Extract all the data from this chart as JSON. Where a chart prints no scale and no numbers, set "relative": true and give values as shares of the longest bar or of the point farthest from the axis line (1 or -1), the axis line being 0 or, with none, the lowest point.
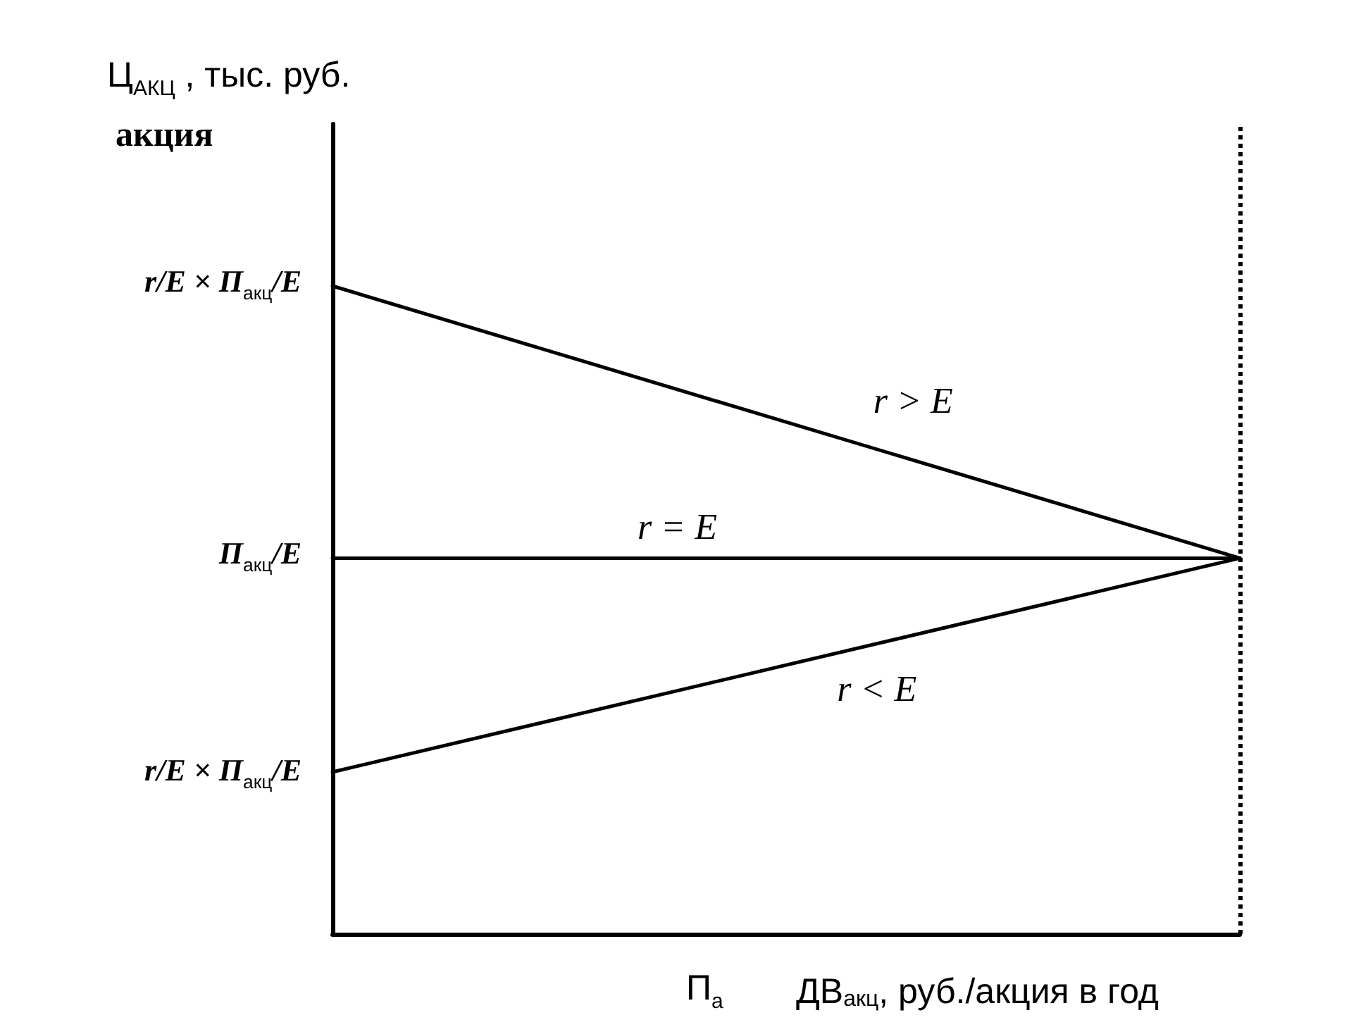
{
  "chart_data": {
    "type": "line",
    "relative": true,
    "categories": [
      null,
      null
    ],
    "series": [
      {
        "name": "r > E",
        "color": "#000000",
        "values": [
          1,
          0.58
        ]
      },
      {
        "name": "r = E",
        "color": "#000000",
        "values": [
          0.58,
          0.58
        ]
      },
      {
        "name": "r < E",
        "color": "#000000",
        "values": [
          0.25,
          0.58
        ]
      }
    ],
    "xlabel": "ДВ$_{акц}$, руб./акция в год",
    "annotations": [
      "Ц$_{АКЦ}$ , тыс. руб.",
      "акция",
      "П$_{а}$",
      "r/E × П$_{акц}$/E",
      "П$_{акц}$/E",
      "r/E × П$_{акц}$/E"
    ],
    "marker": "none",
    "line_style": "solid"
  }
}
